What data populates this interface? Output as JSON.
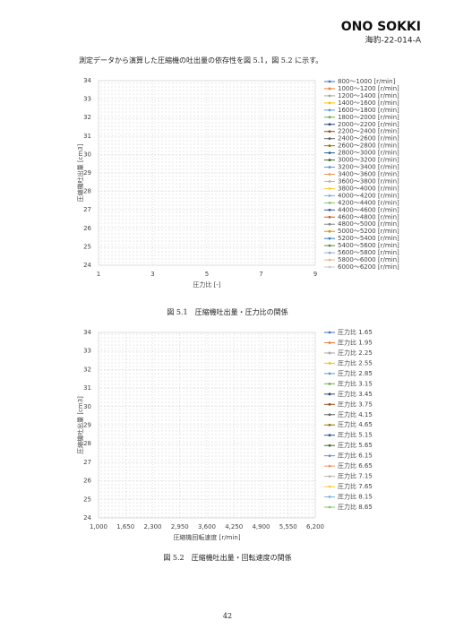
{
  "header": {
    "logo": "ONO SOKKI",
    "doc_id": "海豹-22-014-A"
  },
  "intro": "測定データから演算した圧縮機の吐出量の依存性を図 5.1，図 5.2 に示す。",
  "chart_data": [
    {
      "type": "line",
      "caption": "図 5.1　圧縮機吐出量・圧力比の関係",
      "x_label": "圧力比 [-]",
      "y_label": "圧縮機吐出量 [cm3]",
      "xlim": [
        1,
        9
      ],
      "xticks": [
        1,
        3,
        5,
        7,
        9
      ],
      "ylim": [
        24,
        34
      ],
      "yticks": [
        24,
        25,
        26,
        27,
        28,
        29,
        30,
        31,
        32,
        33,
        34
      ],
      "grid": true,
      "legend": "right",
      "series": [
        {
          "name": "800～1000 [r/min]",
          "color": "#4472c4"
        },
        {
          "name": "1000～1200 [r/min]",
          "color": "#ed7d31"
        },
        {
          "name": "1200～1400 [r/min]",
          "color": "#a5a5a5"
        },
        {
          "name": "1400～1600 [r/min]",
          "color": "#ffc000"
        },
        {
          "name": "1600～1800 [r/min]",
          "color": "#5b9bd5"
        },
        {
          "name": "1800～2000 [r/min]",
          "color": "#70ad47"
        },
        {
          "name": "2000～2200 [r/min]",
          "color": "#264478"
        },
        {
          "name": "2200～2400 [r/min]",
          "color": "#9e480e"
        },
        {
          "name": "2400～2600 [r/min]",
          "color": "#636363"
        },
        {
          "name": "2600～2800 [r/min]",
          "color": "#997300"
        },
        {
          "name": "2800～3000 [r/min]",
          "color": "#255e91"
        },
        {
          "name": "3000～3200 [r/min]",
          "color": "#43682b"
        },
        {
          "name": "3200～3400 [r/min]",
          "color": "#698ed0"
        },
        {
          "name": "3400～3600 [r/min]",
          "color": "#f1975a"
        },
        {
          "name": "3600～3800 [r/min]",
          "color": "#b7b7b7"
        },
        {
          "name": "3800～4000 [r/min]",
          "color": "#ffcd33"
        },
        {
          "name": "4000～4200 [r/min]",
          "color": "#7cafdd"
        },
        {
          "name": "4200～4400 [r/min]",
          "color": "#8cc168"
        },
        {
          "name": "4400～4600 [r/min]",
          "color": "#335aa1"
        },
        {
          "name": "4600～4800 [r/min]",
          "color": "#d26012"
        },
        {
          "name": "4800～5000 [r/min]",
          "color": "#848484"
        },
        {
          "name": "5000～5200 [r/min]",
          "color": "#cc9a00"
        },
        {
          "name": "5200～5400 [r/min]",
          "color": "#327dc2"
        },
        {
          "name": "5400～5600 [r/min]",
          "color": "#5a8a39"
        },
        {
          "name": "5600～5800 [r/min]",
          "color": "#8faadc"
        },
        {
          "name": "5800～6000 [r/min]",
          "color": "#f4b183"
        },
        {
          "name": "6000～6200 [r/min]",
          "color": "#c9c9c9"
        }
      ]
    },
    {
      "type": "line",
      "caption": "図 5.2　圧縮機吐出量・回転速度の関係",
      "x_label": "圧縮機回転速度 [r/min]",
      "y_label": "圧縮機吐出量 [cm3]",
      "xlim": [
        1000,
        6200
      ],
      "xticks": [
        {
          "value": 1000,
          "label": "1,000"
        },
        {
          "value": 1650,
          "label": "1,650"
        },
        {
          "value": 2300,
          "label": "2,300"
        },
        {
          "value": 2950,
          "label": "2,950"
        },
        {
          "value": 3600,
          "label": "3,600"
        },
        {
          "value": 4250,
          "label": "4,250"
        },
        {
          "value": 4900,
          "label": "4,900"
        },
        {
          "value": 5550,
          "label": "5,550"
        },
        {
          "value": 6200,
          "label": "6,200"
        }
      ],
      "ylim": [
        24,
        34
      ],
      "yticks": [
        24,
        25,
        26,
        27,
        28,
        29,
        30,
        31,
        32,
        33,
        34
      ],
      "grid": true,
      "legend": "right",
      "series": [
        {
          "name": "圧力比 1.65",
          "color": "#4472c4"
        },
        {
          "name": "圧力比 1.95",
          "color": "#ed7d31"
        },
        {
          "name": "圧力比 2.25",
          "color": "#a5a5a5"
        },
        {
          "name": "圧力比 2.55",
          "color": "#ffc000"
        },
        {
          "name": "圧力比 2.85",
          "color": "#5b9bd5"
        },
        {
          "name": "圧力比 3.15",
          "color": "#70ad47"
        },
        {
          "name": "圧力比 3.45",
          "color": "#264478"
        },
        {
          "name": "圧力比 3.75",
          "color": "#9e480e"
        },
        {
          "name": "圧力比 4.15",
          "color": "#636363"
        },
        {
          "name": "圧力比 4.65",
          "color": "#997300"
        },
        {
          "name": "圧力比 5.15",
          "color": "#255e91"
        },
        {
          "name": "圧力比 5.65",
          "color": "#43682b"
        },
        {
          "name": "圧力比 6.15",
          "color": "#698ed0"
        },
        {
          "name": "圧力比 6.65",
          "color": "#f1975a"
        },
        {
          "name": "圧力比 7.15",
          "color": "#b7b7b7"
        },
        {
          "name": "圧力比 7.65",
          "color": "#ffcd33"
        },
        {
          "name": "圧力比 8.15",
          "color": "#7cafdd"
        },
        {
          "name": "圧力比 8.65",
          "color": "#8cc168"
        }
      ]
    }
  ],
  "page_number": "42"
}
